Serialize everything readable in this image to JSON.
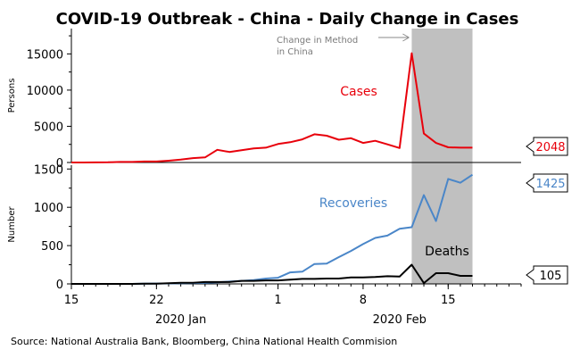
{
  "chart_data": {
    "type": "line",
    "title": "COVID-19 Outbreak - China - Daily Change in Cases",
    "source": "Source: National Australia Bank, Bloomberg, China National Health Commision",
    "x_start": "2020-01-15",
    "x_end": "2020-02-21",
    "x_ticks": [
      {
        "date": "2020-01-15",
        "label": "15"
      },
      {
        "date": "2020-01-22",
        "label": "22"
      },
      {
        "date": "2020-02-01",
        "label": "1"
      },
      {
        "date": "2020-02-08",
        "label": "8"
      },
      {
        "date": "2020-02-15",
        "label": "15"
      }
    ],
    "x_month_labels": [
      {
        "date": "2020-01-24",
        "label": "2020 Jan"
      },
      {
        "date": "2020-02-11",
        "label": "2020 Feb"
      }
    ],
    "shaded_region": {
      "from": "2020-02-12",
      "to": "2020-02-17",
      "color": "#c0c0c0"
    },
    "annotation": {
      "text_lines": [
        "Change in Method",
        "in China"
      ],
      "arrow_to": "2020-02-12"
    },
    "panels": [
      {
        "ylabel": "Persons",
        "ylim": [
          0,
          18500
        ],
        "yticks": [
          0,
          5000,
          10000,
          15000
        ],
        "yticklabels": [
          "0",
          "5000",
          "10000",
          "15000"
        ],
        "series": [
          {
            "name": "Cases",
            "color": "#e8000b",
            "last_value_label": "2048",
            "x": [
              "2020-01-15",
              "2020-01-16",
              "2020-01-17",
              "2020-01-18",
              "2020-01-19",
              "2020-01-20",
              "2020-01-21",
              "2020-01-22",
              "2020-01-23",
              "2020-01-24",
              "2020-01-25",
              "2020-01-26",
              "2020-01-27",
              "2020-01-28",
              "2020-01-29",
              "2020-01-30",
              "2020-01-31",
              "2020-02-01",
              "2020-02-02",
              "2020-02-03",
              "2020-02-04",
              "2020-02-05",
              "2020-02-06",
              "2020-02-07",
              "2020-02-08",
              "2020-02-09",
              "2020-02-10",
              "2020-02-11",
              "2020-02-12",
              "2020-02-13",
              "2020-02-14",
              "2020-02-15",
              "2020-02-16",
              "2020-02-17"
            ],
            "values": [
              5,
              5,
              15,
              20,
              80,
              80,
              130,
              130,
              250,
              400,
              600,
              700,
              1750,
              1450,
              1700,
              1950,
              2050,
              2550,
              2800,
              3200,
              3900,
              3700,
              3150,
              3350,
              2700,
              3000,
              2500,
              2000,
              15100,
              4000,
              2700,
              2100,
              2050,
              2048
            ]
          }
        ]
      },
      {
        "ylabel": "Number",
        "ylim": [
          0,
          1550
        ],
        "yticks": [
          0,
          500,
          1000,
          1500
        ],
        "yticklabels": [
          "0",
          "500",
          "1000",
          "1500"
        ],
        "series": [
          {
            "name": "Recoveries",
            "color": "#4a86c8",
            "last_value_label": "1425",
            "x": [
              "2020-01-15",
              "2020-01-16",
              "2020-01-17",
              "2020-01-18",
              "2020-01-19",
              "2020-01-20",
              "2020-01-21",
              "2020-01-22",
              "2020-01-23",
              "2020-01-24",
              "2020-01-25",
              "2020-01-26",
              "2020-01-27",
              "2020-01-28",
              "2020-01-29",
              "2020-01-30",
              "2020-01-31",
              "2020-02-01",
              "2020-02-02",
              "2020-02-03",
              "2020-02-04",
              "2020-02-05",
              "2020-02-06",
              "2020-02-07",
              "2020-02-08",
              "2020-02-09",
              "2020-02-10",
              "2020-02-11",
              "2020-02-12",
              "2020-02-13",
              "2020-02-14",
              "2020-02-15",
              "2020-02-16",
              "2020-02-17"
            ],
            "values": [
              0,
              0,
              0,
              0,
              0,
              0,
              2,
              5,
              6,
              8,
              10,
              15,
              20,
              30,
              40,
              50,
              70,
              80,
              150,
              160,
              260,
              265,
              350,
              430,
              520,
              600,
              630,
              720,
              740,
              1160,
              820,
              1370,
              1320,
              1425
            ]
          },
          {
            "name": "Deaths",
            "color": "#000000",
            "last_value_label": "105",
            "x": [
              "2020-01-15",
              "2020-01-16",
              "2020-01-17",
              "2020-01-18",
              "2020-01-19",
              "2020-01-20",
              "2020-01-21",
              "2020-01-22",
              "2020-01-23",
              "2020-01-24",
              "2020-01-25",
              "2020-01-26",
              "2020-01-27",
              "2020-01-28",
              "2020-01-29",
              "2020-01-30",
              "2020-01-31",
              "2020-02-01",
              "2020-02-02",
              "2020-02-03",
              "2020-02-04",
              "2020-02-05",
              "2020-02-06",
              "2020-02-07",
              "2020-02-08",
              "2020-02-09",
              "2020-02-10",
              "2020-02-11",
              "2020-02-12",
              "2020-02-13",
              "2020-02-14",
              "2020-02-15",
              "2020-02-16",
              "2020-02-17"
            ],
            "values": [
              0,
              0,
              0,
              0,
              0,
              0,
              2,
              4,
              8,
              15,
              15,
              25,
              25,
              25,
              40,
              40,
              45,
              45,
              55,
              65,
              65,
              70,
              70,
              85,
              85,
              90,
              100,
              95,
              250,
              10,
              140,
              140,
              105,
              105
            ]
          }
        ]
      }
    ]
  }
}
